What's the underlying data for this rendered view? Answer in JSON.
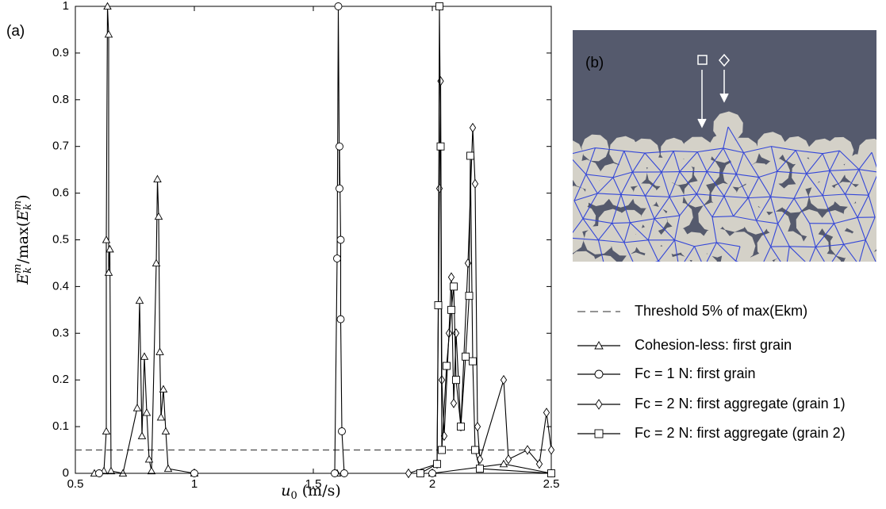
{
  "chart_data": {
    "type": "line",
    "panel_a_label": "(a)",
    "panel_b_label": "(b)",
    "x_label": [
      "u",
      "0",
      " (m/s)"
    ],
    "y_label": [
      "E",
      "k",
      "m",
      "/max(",
      "E",
      "k",
      "m",
      ")"
    ],
    "xlim": [
      0.5,
      2.5
    ],
    "xticks": [
      0.5,
      1,
      1.5,
      2,
      2.5
    ],
    "ylim": [
      0,
      1
    ],
    "yticks": [
      0,
      0.1,
      0.2,
      0.3,
      0.4,
      0.5,
      0.6,
      0.7,
      0.8,
      0.9,
      1
    ],
    "legend": "right",
    "series": [
      {
        "name": "Threshold 5% of max(Ekm)",
        "color": "#555555",
        "dash": true,
        "marker": "none",
        "x": [
          0.5,
          2.5
        ],
        "values": [
          0.05,
          0.05
        ]
      },
      {
        "name": "Cohesion-less: first grain",
        "color": "#000000",
        "marker": "triangle",
        "x": [
          0.58,
          0.62,
          0.63,
          0.63,
          0.635,
          0.64,
          0.64,
          0.645,
          0.65,
          0.7,
          0.76,
          0.77,
          0.78,
          0.79,
          0.8,
          0.81,
          0.82,
          0.84,
          0.845,
          0.85,
          0.855,
          0.86,
          0.87,
          0.88,
          0.89,
          1.0,
          1.6,
          2.0,
          2.3,
          2.5
        ],
        "values": [
          0,
          0.005,
          0.09,
          0.5,
          1.0,
          0.94,
          0.43,
          0.48,
          0.005,
          0,
          0.14,
          0.37,
          0.08,
          0.25,
          0.13,
          0.03,
          0.005,
          0.45,
          0.63,
          0.55,
          0.26,
          0.12,
          0.18,
          0.09,
          0.01,
          0,
          0,
          0,
          0.02,
          0
        ]
      },
      {
        "name": "Fc = 1 N: first grain",
        "color": "#000000",
        "marker": "circle",
        "x": [
          0.6,
          1.0,
          1.59,
          1.6,
          1.605,
          1.61,
          1.61,
          1.615,
          1.615,
          1.62,
          1.63,
          2.0,
          2.5
        ],
        "values": [
          0,
          0,
          0,
          0.46,
          1.0,
          0.61,
          0.7,
          0.5,
          0.33,
          0.09,
          0,
          0,
          0
        ]
      },
      {
        "name": "Fc = 2 N: first aggregate (grain 1)",
        "color": "#000000",
        "marker": "diamond",
        "x": [
          1.9,
          2.02,
          2.03,
          2.035,
          2.04,
          2.05,
          2.07,
          2.08,
          2.09,
          2.1,
          2.12,
          2.15,
          2.17,
          2.18,
          2.19,
          2.2,
          2.3,
          2.32,
          2.4,
          2.45,
          2.48,
          2.5
        ],
        "values": [
          0,
          0.02,
          0.61,
          0.84,
          0.2,
          0.08,
          0.3,
          0.42,
          0.15,
          0.3,
          0.1,
          0.45,
          0.74,
          0.62,
          0.1,
          0.03,
          0.2,
          0.03,
          0.05,
          0.02,
          0.13,
          0.05
        ]
      },
      {
        "name": "Fc = 2 N: first aggregate (grain 2)",
        "color": "#000000",
        "marker": "square",
        "x": [
          1.95,
          2.02,
          2.025,
          2.03,
          2.035,
          2.04,
          2.06,
          2.08,
          2.09,
          2.1,
          2.12,
          2.14,
          2.155,
          2.16,
          2.17,
          2.18,
          2.2,
          2.5
        ],
        "values": [
          0,
          0.02,
          0.36,
          1.0,
          0.7,
          0.05,
          0.23,
          0.35,
          0.4,
          0.2,
          0.1,
          0.25,
          0.38,
          0.68,
          0.24,
          0.05,
          0.01,
          0
        ]
      }
    ]
  }
}
